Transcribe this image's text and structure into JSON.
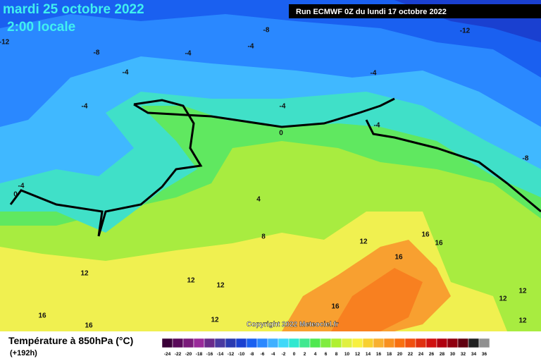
{
  "header": {
    "date": "mardi 25 octobre 2022",
    "time": "2:00 locale",
    "run": "Run ECMWF 0Z du lundi 17 octobre 2022"
  },
  "map": {
    "copyright": "Copyright 2022 Meteociel.fr",
    "contour_labels": [
      "-8",
      "-12",
      "-12",
      "-8",
      "-4",
      "-4",
      "-4",
      "-4",
      "-4",
      "-4",
      "-4",
      "0",
      "-8",
      "-4",
      "0",
      "4",
      "8",
      "12",
      "16",
      "16",
      "16",
      "12",
      "12",
      "12",
      "12",
      "12",
      "16",
      "16",
      "12",
      "16",
      "12"
    ]
  },
  "legend": {
    "title": "Température à 850hPa (°C)",
    "lead": "(+192h)",
    "labels": [
      "-24",
      "-22",
      "-20",
      "-18",
      "-16",
      "-14",
      "-12",
      "-10",
      "-8",
      "-6",
      "-4",
      "-2",
      "0",
      "2",
      "4",
      "6",
      "8",
      "10",
      "12",
      "14",
      "16",
      "18",
      "20",
      "22",
      "24",
      "26",
      "28",
      "30",
      "32",
      "34",
      "36"
    ],
    "colors": [
      "#3a0038",
      "#5a0a5a",
      "#7a1a7a",
      "#9a2a9a",
      "#6a2a8a",
      "#4a3aa0",
      "#2a3ab0",
      "#1a40d0",
      "#1a60f0",
      "#2a88ff",
      "#40b0ff",
      "#40d8f8",
      "#30e8d0",
      "#40e890",
      "#50e850",
      "#80ec40",
      "#b0f030",
      "#e0f040",
      "#f8f040",
      "#f8d030",
      "#f8b030",
      "#f89020",
      "#f87010",
      "#f05010",
      "#e03010",
      "#d01010",
      "#b00010",
      "#900010",
      "#600010",
      "#202020",
      "#909090"
    ]
  }
}
